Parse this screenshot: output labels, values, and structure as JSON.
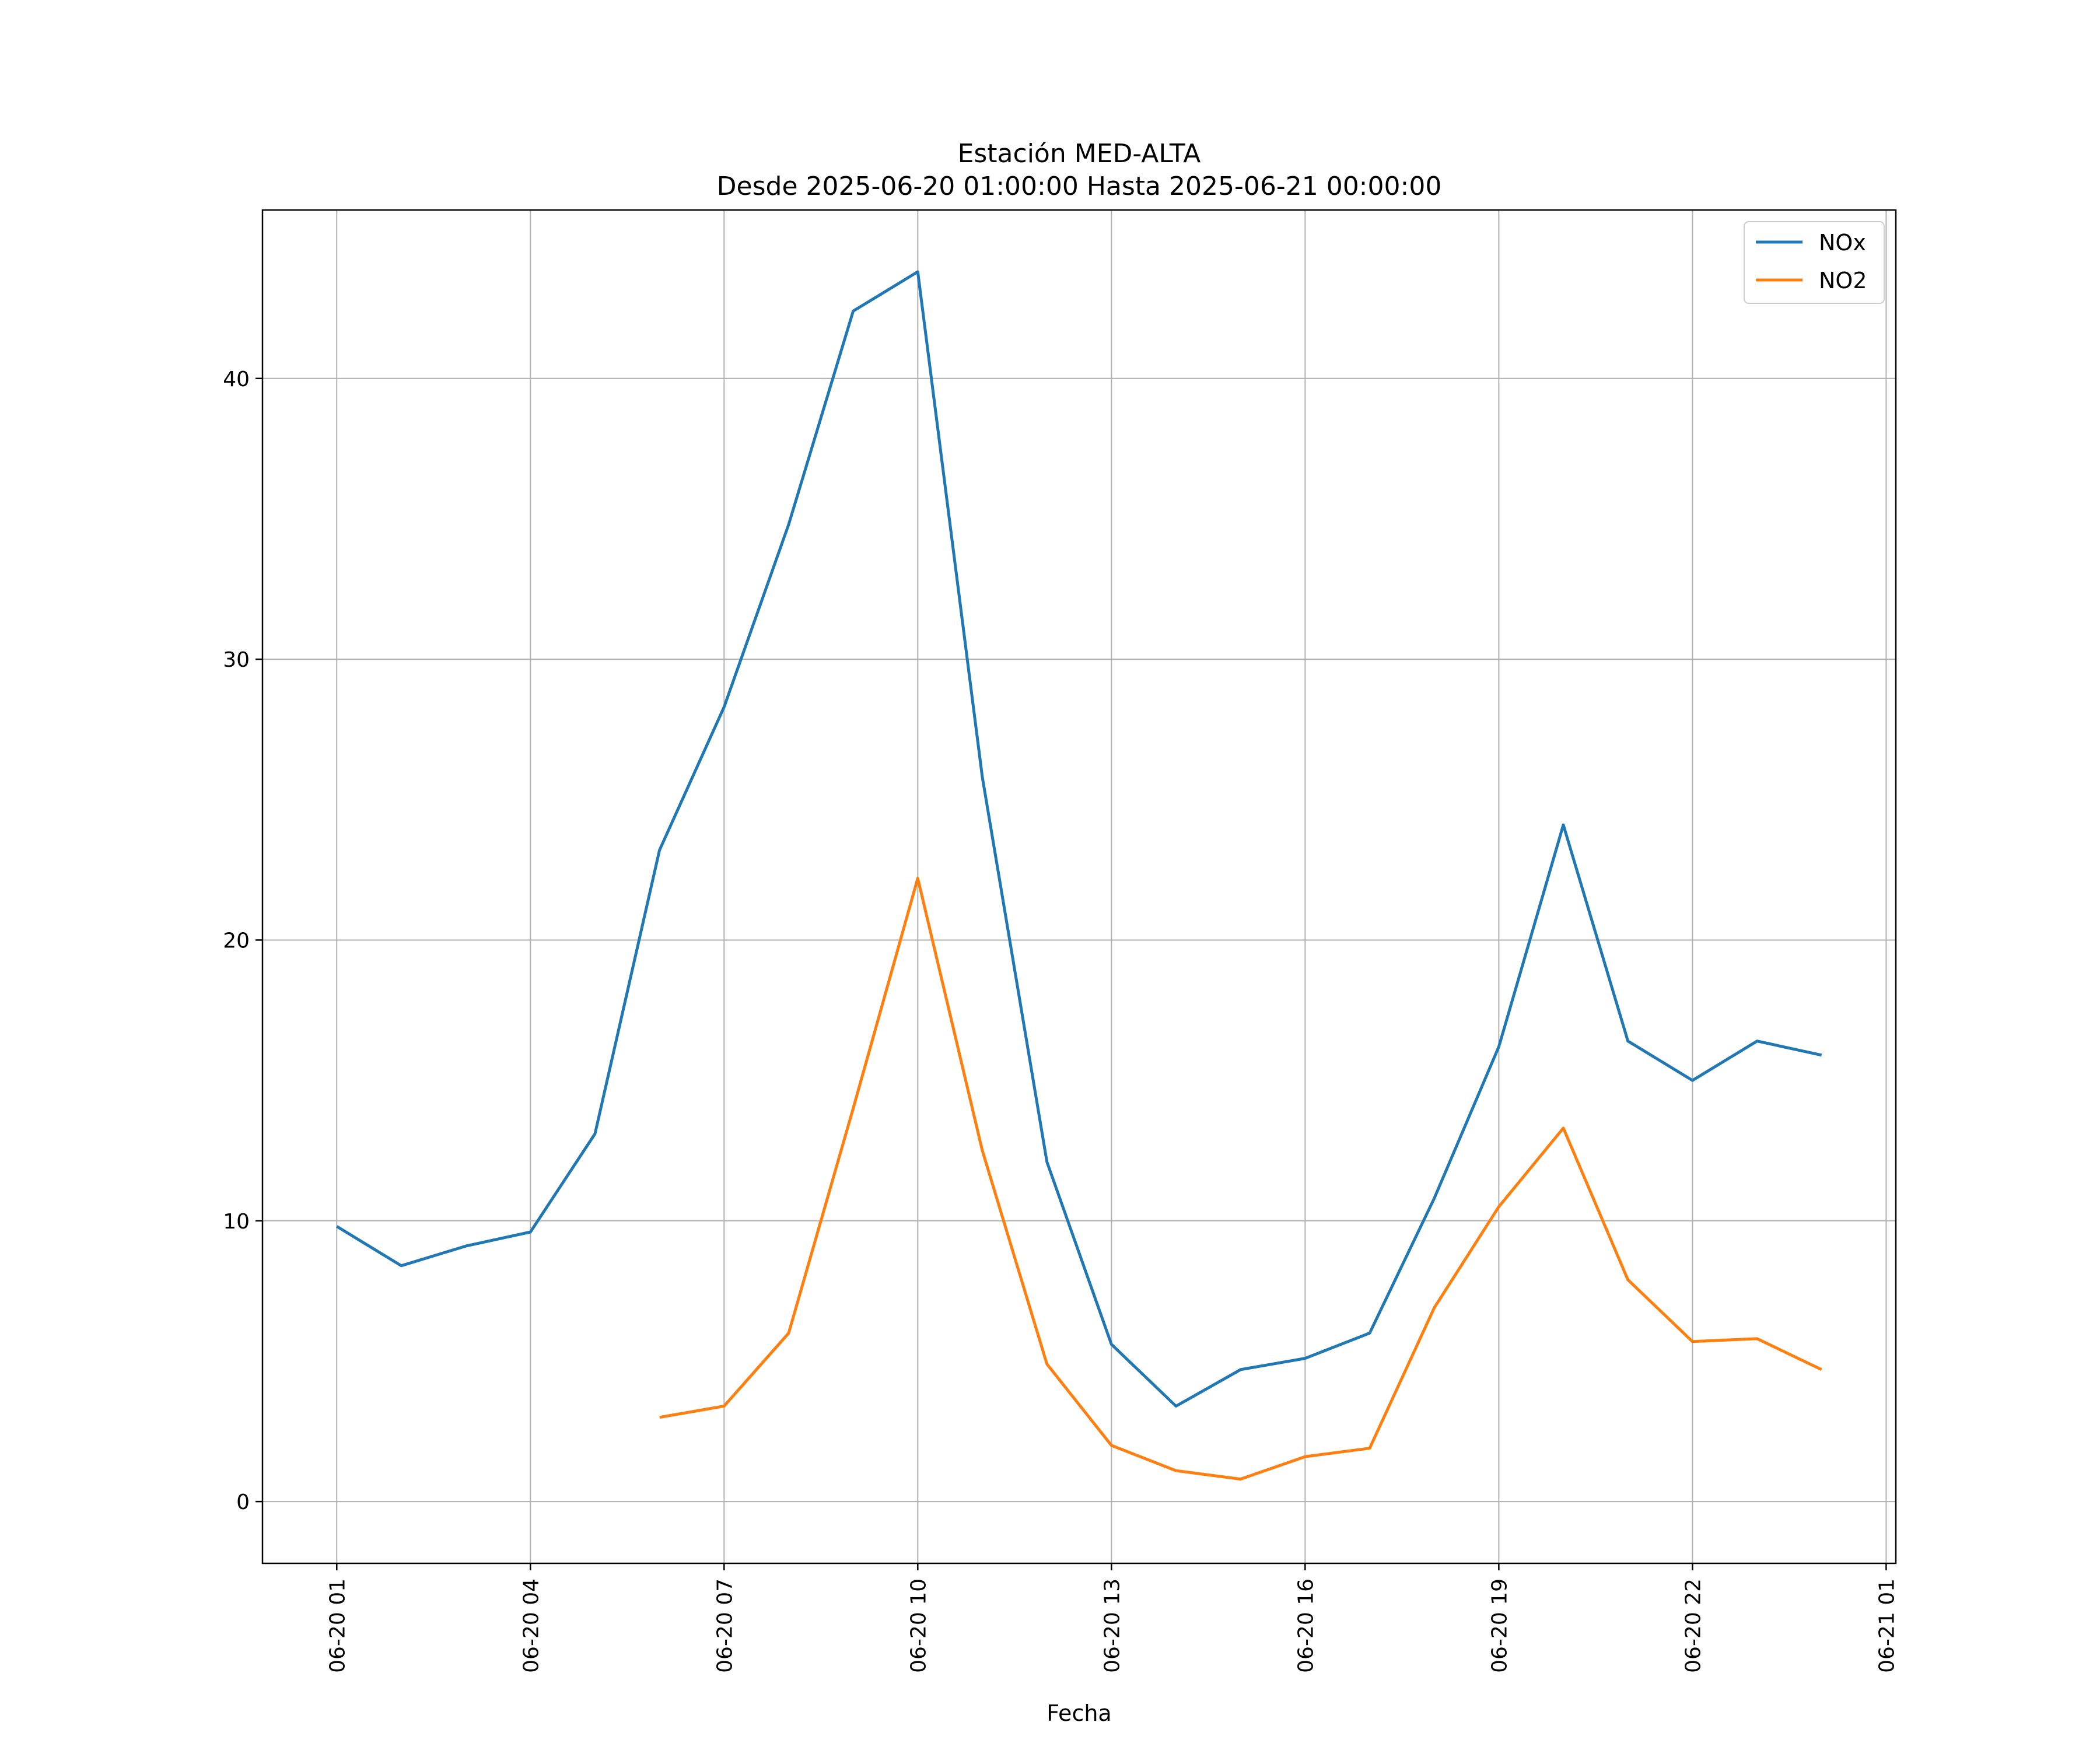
{
  "chart_data": {
    "type": "line",
    "title": "Estación MED-ALTA",
    "subtitle": "Desde 2025-06-20 01:00:00 Hasta 2025-06-21 00:00:00",
    "xlabel": "Fecha",
    "ylabel": "",
    "x": [
      "2025-06-20 01:00",
      "2025-06-20 02:00",
      "2025-06-20 03:00",
      "2025-06-20 04:00",
      "2025-06-20 05:00",
      "2025-06-20 06:00",
      "2025-06-20 07:00",
      "2025-06-20 08:00",
      "2025-06-20 09:00",
      "2025-06-20 10:00",
      "2025-06-20 11:00",
      "2025-06-20 12:00",
      "2025-06-20 13:00",
      "2025-06-20 14:00",
      "2025-06-20 15:00",
      "2025-06-20 16:00",
      "2025-06-20 17:00",
      "2025-06-20 18:00",
      "2025-06-20 19:00",
      "2025-06-20 20:00",
      "2025-06-20 21:00",
      "2025-06-20 22:00",
      "2025-06-20 23:00",
      "2025-06-21 00:00"
    ],
    "series": [
      {
        "name": "NOx",
        "color": "#1f77b4",
        "values": [
          9.8,
          8.4,
          9.1,
          9.6,
          13.1,
          23.2,
          28.3,
          34.8,
          42.4,
          43.8,
          25.8,
          12.1,
          5.6,
          3.4,
          4.7,
          5.1,
          6.0,
          10.8,
          16.2,
          24.1,
          16.4,
          15.0,
          16.4,
          15.9
        ]
      },
      {
        "name": "NO2",
        "color": "#ff7f0e",
        "values": [
          null,
          null,
          null,
          null,
          null,
          3.0,
          3.4,
          6.0,
          14.0,
          22.2,
          12.5,
          4.9,
          2.0,
          1.1,
          0.8,
          1.6,
          1.9,
          6.9,
          10.5,
          13.3,
          7.9,
          5.7,
          5.8,
          4.7
        ]
      }
    ],
    "xticks": [
      "06-20 01",
      "06-20 04",
      "06-20 07",
      "06-20 10",
      "06-20 13",
      "06-20 16",
      "06-20 19",
      "06-20 22",
      "06-21 01"
    ],
    "xlim": [
      "2025-06-19 23:51",
      "2025-06-21 01:09"
    ],
    "ylim": [
      -2.2,
      46.0
    ],
    "yticks": [
      0,
      10,
      20,
      30,
      40
    ],
    "grid": true,
    "legend": "top-right"
  }
}
